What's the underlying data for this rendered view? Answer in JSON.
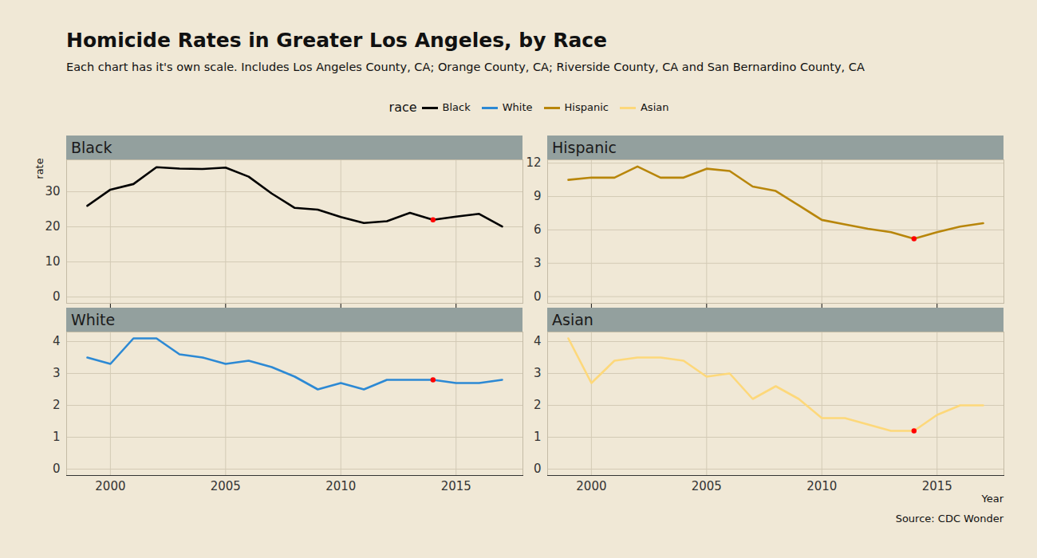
{
  "chart_data": {
    "type": "line",
    "title": "Homicide Rates in Greater Los Angeles, by Race",
    "subtitle": "Each chart has it's own scale. Includes Los Angeles County, CA; Orange County, CA; Riverside County, CA and San Bernardino County, CA",
    "legend_title": "race",
    "xlabel": "Year",
    "ylabel": "rate",
    "caption": "Source: CDC Wonder",
    "grid": true,
    "xlim": [
      1998.1,
      2017.9
    ],
    "xticks": [
      2000,
      2005,
      2010,
      2015
    ],
    "x": [
      1999,
      2000,
      2001,
      2002,
      2003,
      2004,
      2005,
      2006,
      2007,
      2008,
      2009,
      2010,
      2011,
      2012,
      2013,
      2014,
      2015,
      2016,
      2017
    ],
    "series": [
      {
        "name": "Black",
        "color": "#000000",
        "values": [
          26,
          30.6,
          32.2,
          37,
          36.6,
          36.5,
          36.9,
          34.3,
          29.5,
          25.4,
          24.9,
          22.8,
          21.1,
          21.6,
          24,
          22,
          22.9,
          23.7,
          20.1
        ],
        "ylim": [
          -1.8,
          39.1
        ],
        "yticks": [
          0,
          10,
          20,
          30
        ],
        "highlight": {
          "x": 2014,
          "y": 22,
          "color": "#ff0000"
        }
      },
      {
        "name": "White",
        "color": "#2c89d4",
        "values": [
          3.5,
          3.3,
          4.1,
          4.1,
          3.6,
          3.5,
          3.3,
          3.4,
          3.2,
          2.9,
          2.5,
          2.7,
          2.5,
          2.8,
          2.8,
          2.8,
          2.7,
          2.7,
          2.8
        ],
        "ylim": [
          -0.2,
          4.3
        ],
        "yticks": [
          0,
          1,
          2,
          3,
          4
        ],
        "highlight": {
          "x": 2014,
          "y": 2.8,
          "color": "#ff0000"
        }
      },
      {
        "name": "Hispanic",
        "color": "#b8860b",
        "values": [
          10.5,
          10.7,
          10.7,
          11.7,
          10.7,
          10.7,
          11.5,
          11.3,
          9.9,
          9.5,
          8.2,
          6.9,
          6.5,
          6.1,
          5.8,
          5.2,
          5.8,
          6.3,
          6.6
        ],
        "ylim": [
          -0.6,
          12.3
        ],
        "yticks": [
          0,
          3,
          6,
          9,
          12
        ],
        "highlight": {
          "x": 2014,
          "y": 5.2,
          "color": "#ff0000"
        }
      },
      {
        "name": "Asian",
        "color": "#fdd87a",
        "values": [
          4.1,
          2.7,
          3.4,
          3.5,
          3.5,
          3.4,
          2.9,
          3.0,
          2.2,
          2.6,
          2.2,
          1.6,
          1.6,
          1.4,
          1.2,
          1.2,
          1.7,
          2.0,
          2.0
        ],
        "ylim": [
          -0.2,
          4.3
        ],
        "yticks": [
          0,
          1,
          2,
          3,
          4
        ],
        "highlight": {
          "x": 2014,
          "y": 1.2,
          "color": "#ff0000"
        }
      }
    ]
  }
}
